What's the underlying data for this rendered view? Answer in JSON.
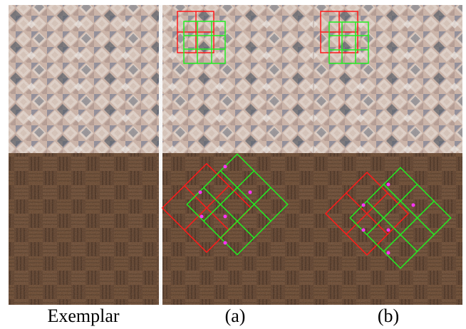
{
  "captions": {
    "exemplar": "Exemplar",
    "a": "(a)",
    "b": "(b)"
  }
}
